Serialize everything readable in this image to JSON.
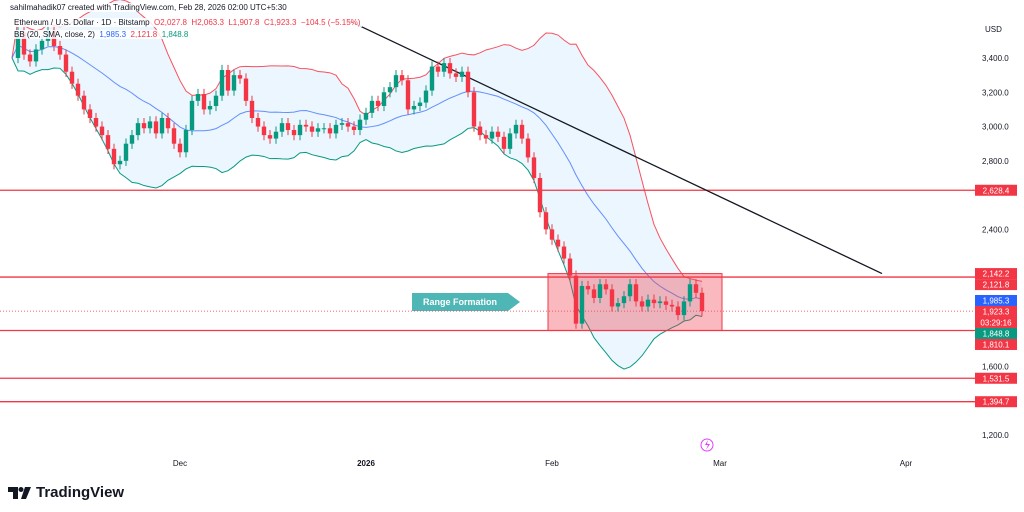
{
  "header": {
    "credit": "sahilmahadik07 created with TradingView.com, Feb 28, 2026 02:00 UTC+5:30",
    "symbol": "Ethereum / U.S. Dollar · 1D · Bitstamp",
    "o": "O2,027.8",
    "h": "H2,063.3",
    "l": "L1,907.8",
    "c": "C1,923.3",
    "chg": "−104.5 (−5.15%)",
    "bb_label": "BB (20, SMA, close, 2)",
    "bb_basis": "1,985.3",
    "bb_upper": "2,121.8",
    "bb_lower": "1,848.8"
  },
  "logo": "TradingView",
  "colors": {
    "up": "#089981",
    "down": "#f23645",
    "basis": "#2962ff",
    "band_fill": "#e3f2fd",
    "level": "#f23645"
  },
  "chart_data": {
    "type": "candlestick",
    "currency": "USD",
    "start_date": "2025-11-03",
    "close": [
      3400,
      3550,
      3420,
      3380,
      3450,
      3500,
      3560,
      3470,
      3420,
      3320,
      3250,
      3180,
      3100,
      3050,
      3000,
      2950,
      2870,
      2780,
      2800,
      2900,
      2950,
      3020,
      2990,
      3030,
      2960,
      3050,
      2990,
      2900,
      2850,
      2980,
      3150,
      3190,
      3100,
      3120,
      3180,
      3330,
      3210,
      3300,
      3280,
      3150,
      3050,
      3000,
      2950,
      2930,
      2970,
      3020,
      2980,
      2950,
      3010,
      3000,
      2970,
      2990,
      2990,
      2960,
      3010,
      3020,
      3000,
      2980,
      3040,
      3080,
      3150,
      3120,
      3200,
      3230,
      3300,
      3270,
      3100,
      3120,
      3140,
      3210,
      3350,
      3320,
      3370,
      3310,
      3290,
      3320,
      3200,
      3000,
      2950,
      2930,
      2970,
      2940,
      2870,
      2960,
      3010,
      2930,
      2820,
      2700,
      2500,
      2400,
      2340,
      2300,
      2230,
      2130,
      1850,
      2070,
      2050,
      2000,
      2080,
      2050,
      1950,
      1970,
      2010,
      2080,
      1980,
      1950,
      1990,
      1970,
      1980,
      1960,
      1950,
      1900,
      1980,
      2080,
      2030,
      1923
    ],
    "y_ticks": [
      "3,400.0",
      "3,200.0",
      "3,000.0",
      "2,800.0",
      "2,400.0",
      "1,600.0",
      "1,200.0"
    ],
    "x_ticks": [
      "Dec",
      "2026",
      "Feb",
      "Mar",
      "Apr"
    ],
    "levels": [
      {
        "price": 2628.4,
        "label": "2,628.4"
      },
      {
        "price": 2121.8,
        "label": "2,121.8"
      },
      {
        "price": 1810.1,
        "label": "1,810.1"
      },
      {
        "price": 1531.5,
        "label": "1,531.5"
      },
      {
        "price": 1394.7,
        "label": "1,394.7"
      }
    ],
    "price_tags": [
      {
        "label": "2,142.2",
        "color": "#f23645",
        "price": 2142.2
      },
      {
        "label": "1,985.3",
        "color": "#2962ff",
        "price": 1985.3
      },
      {
        "label": "1,923.3",
        "color": "#f23645",
        "price": 1923.3
      },
      {
        "label": "03:29:16",
        "color": "#f23645",
        "price": 1890
      },
      {
        "label": "1,848.8",
        "color": "#089981",
        "price": 1848.8
      }
    ],
    "trendline": {
      "from": [
        "2025-12-29",
        3620
      ],
      "to": [
        "2026-03-28",
        2142.2
      ]
    },
    "range_box": {
      "from": "2026-02-01",
      "to": "2026-02-28",
      "top": 2142.2,
      "bottom": 1810.1,
      "label": "Range Formation"
    }
  }
}
